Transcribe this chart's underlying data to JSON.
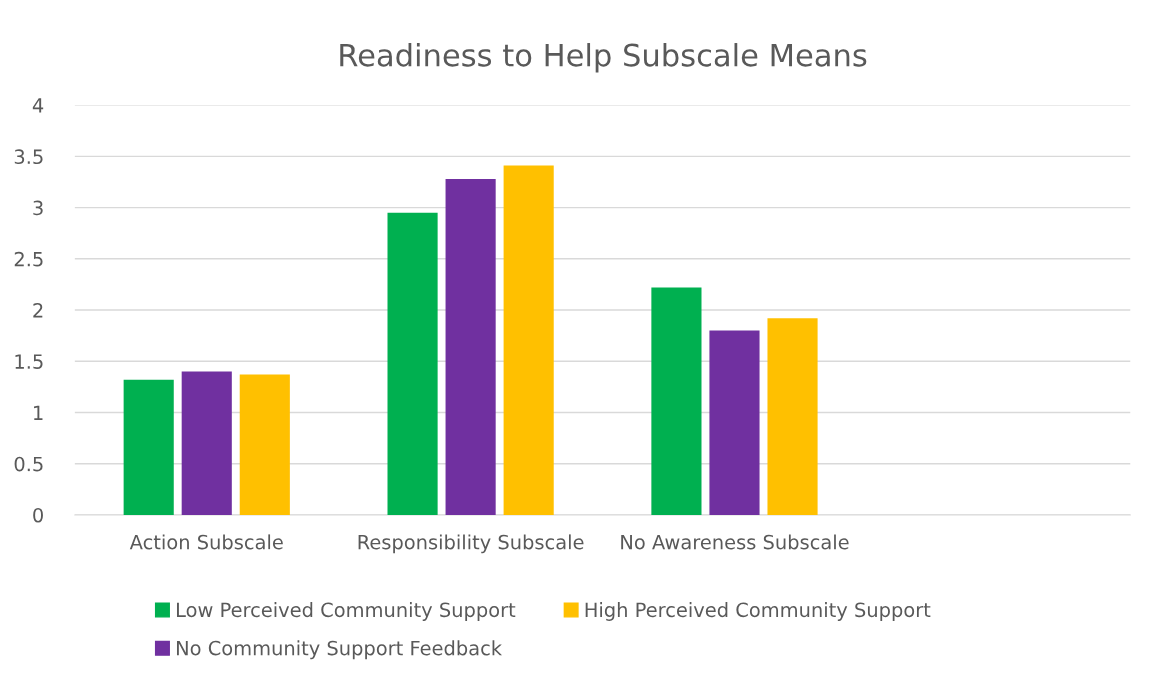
{
  "chart_data": {
    "type": "bar",
    "title": "Readiness to Help Subscale Means",
    "categories": [
      "Action Subscale",
      "Responsibility Subscale",
      "No Awareness Subscale",
      null
    ],
    "series": [
      {
        "name": "Low Perceived Community Support",
        "color": "#00b050",
        "values": [
          1.32,
          2.95,
          2.22,
          null
        ]
      },
      {
        "name": "No Community Support Feedback",
        "color": "#7030a0",
        "values": [
          1.4,
          3.28,
          1.8,
          null
        ]
      },
      {
        "name": "High Perceived Community Support",
        "color": "#ffc000",
        "values": [
          1.37,
          3.41,
          1.92,
          null
        ]
      }
    ],
    "ylim": [
      0,
      4
    ],
    "yticks": [
      0,
      {
        "value": 0.5,
        "label": "0.5"
      },
      1,
      {
        "value": 1.5,
        "label": "1.5"
      },
      2,
      {
        "value": 2.5,
        "label": "2.5"
      },
      3,
      {
        "value": 3.5,
        "label": "3.5"
      },
      4
    ],
    "grid": "y",
    "legend": "bottom"
  }
}
